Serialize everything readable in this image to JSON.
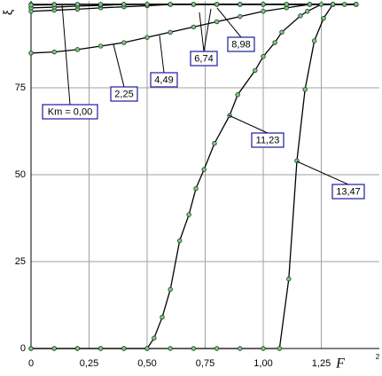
{
  "chart_data": {
    "type": "line",
    "ylabel": "ξ",
    "xlabel": "F",
    "xlabel_superscript": "2",
    "xlim": [
      0,
      1.5
    ],
    "ylim": [
      0,
      100
    ],
    "xticks": [
      0,
      {
        "value": 0.25,
        "label": "0,25"
      },
      {
        "value": 0.5,
        "label": "0,50"
      },
      {
        "value": 0.75,
        "label": "0,75"
      },
      {
        "value": 1,
        "label": "1,00"
      },
      {
        "value": 1.25,
        "label": "1,25"
      }
    ],
    "yticks": [
      0,
      25,
      50,
      75
    ],
    "grid": true,
    "line_color": "#000000",
    "marker_color": "#7ccf6a",
    "series": [
      {
        "name": "Km = 0,00",
        "x": [
          0,
          0.1,
          0.2,
          0.3,
          0.4,
          0.5,
          0.6,
          0.7,
          0.8,
          0.9,
          1.0,
          1.1,
          1.2,
          1.3,
          1.4
        ],
        "values": [
          99,
          99,
          99,
          99,
          99,
          99,
          99,
          99,
          99,
          99,
          99,
          99,
          99,
          99,
          99
        ]
      },
      {
        "name": "2,25",
        "x": [
          0,
          0.1,
          0.2,
          0.3,
          0.4,
          0.5,
          0.6,
          0.7,
          0.8,
          0.9,
          1.0,
          1.1,
          1.2,
          1.3,
          1.4
        ],
        "values": [
          85,
          85.3,
          86,
          87,
          88,
          89.5,
          91,
          92.5,
          94,
          95.5,
          97,
          98,
          99,
          99,
          99
        ]
      },
      {
        "name": "4,49",
        "x": [
          0,
          0.1,
          0.2,
          0.3,
          0.4,
          0.5,
          0.6,
          0.7,
          0.8,
          0.9,
          1.0,
          1.1,
          1.2,
          1.3,
          1.4
        ],
        "values": [
          97,
          97.3,
          97.6,
          98,
          98.3,
          98.6,
          99,
          99,
          99,
          99,
          99,
          99,
          99,
          99,
          99
        ]
      },
      {
        "name": "6,74",
        "x": [
          0,
          0.1,
          0.2,
          0.3,
          0.4,
          0.5,
          0.6,
          0.7,
          0.8,
          0.9,
          1.0,
          1.1,
          1.2,
          1.3,
          1.4
        ],
        "values": [
          98,
          98.2,
          98.5,
          98.7,
          99,
          99,
          99,
          99,
          99,
          99,
          99,
          99,
          99,
          99,
          99
        ]
      },
      {
        "name": "8,98",
        "x": [
          0,
          0.1,
          0.2,
          0.3,
          0.4,
          0.5,
          0.6,
          0.7,
          0.8,
          0.9,
          1.0,
          1.1,
          1.2,
          1.3,
          1.4
        ],
        "values": [
          98.8,
          98.9,
          99,
          99,
          99,
          99,
          99,
          99,
          99,
          99,
          99,
          99,
          99,
          99,
          99
        ]
      },
      {
        "name": "11,23",
        "x": [
          0,
          0.1,
          0.2,
          0.3,
          0.4,
          0.5,
          0.53,
          0.565,
          0.6,
          0.64,
          0.68,
          0.71,
          0.745,
          0.79,
          0.855,
          0.89,
          0.965,
          1.0,
          1.05,
          1.08,
          1.16,
          1.19,
          1.25,
          1.3,
          1.35,
          1.4
        ],
        "values": [
          0,
          0,
          0,
          0,
          0,
          0,
          3,
          9,
          17,
          31,
          38.5,
          46,
          51.5,
          59,
          67,
          73,
          80,
          84,
          88,
          91,
          95.7,
          97,
          99,
          99,
          99,
          99
        ]
      },
      {
        "name": "13,47",
        "x": [
          0,
          0.1,
          0.2,
          0.3,
          0.4,
          0.5,
          0.6,
          0.7,
          0.8,
          0.9,
          1.0,
          1.07,
          1.11,
          1.145,
          1.18,
          1.22,
          1.26,
          1.3,
          1.35,
          1.4
        ],
        "values": [
          0,
          0,
          0,
          0,
          0,
          0,
          0,
          0,
          0,
          0,
          0,
          0,
          20,
          54,
          74.5,
          88.5,
          95,
          99,
          99,
          99
        ]
      }
    ]
  }
}
